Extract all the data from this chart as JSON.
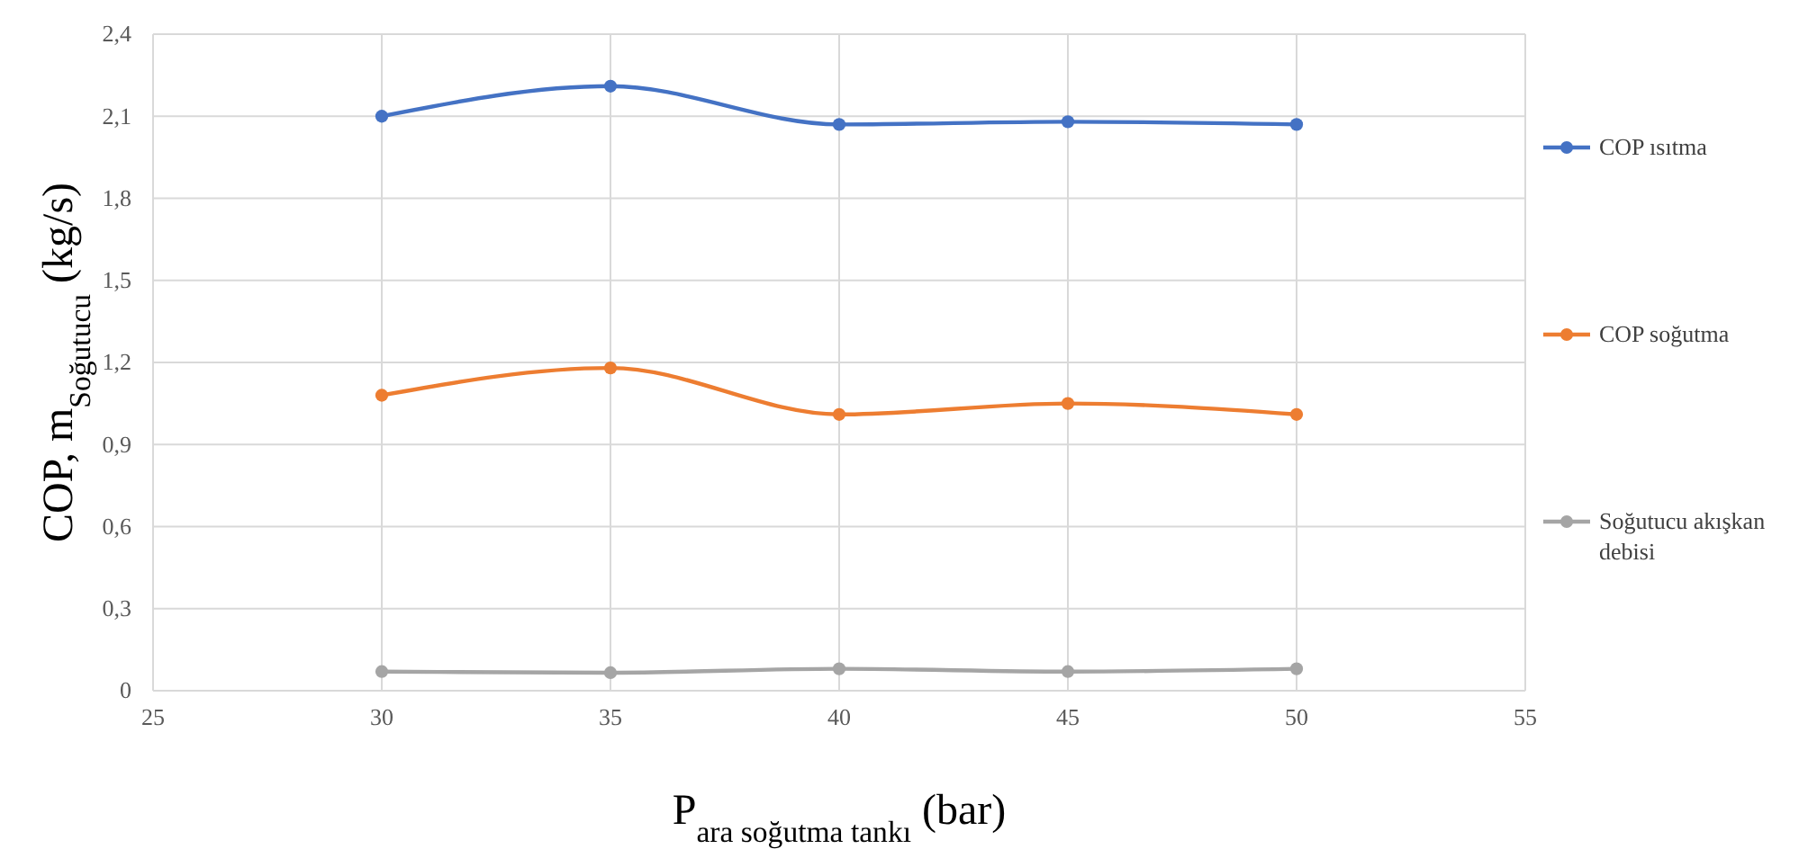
{
  "chart_data": {
    "type": "line",
    "xlabel": "P$_{ara soğutma tankı}$ (bar)",
    "ylabel": "COP, m$_{Soğutucu}$ (kg/s)",
    "x": [
      30,
      35,
      40,
      45,
      50
    ],
    "series": [
      {
        "name": "COP ısıtma",
        "color": "#4472c4",
        "values": [
          2.1,
          2.21,
          2.07,
          2.08,
          2.07
        ]
      },
      {
        "name": "COP soğutma",
        "color": "#ed7d31",
        "values": [
          1.08,
          1.18,
          1.01,
          1.05,
          1.01
        ]
      },
      {
        "name": "Soğutucu akışkan debisi",
        "color": "#a5a5a5",
        "values": [
          0.07,
          0.066,
          0.08,
          0.07,
          0.08
        ]
      }
    ],
    "xlim": [
      25,
      55
    ],
    "xticks": [
      25,
      30,
      35,
      40,
      45,
      50,
      55
    ],
    "ylim": [
      0,
      2.4
    ],
    "yticks": [
      0,
      {
        "value": 0.3,
        "label": "0,3"
      },
      {
        "value": 0.6,
        "label": "0,6"
      },
      {
        "value": 0.9,
        "label": "0,9"
      },
      {
        "value": 1.2,
        "label": "1,2"
      },
      {
        "value": 1.5,
        "label": "1,5"
      },
      {
        "value": 1.8,
        "label": "1,8"
      },
      {
        "value": 2.1,
        "label": "2,1"
      },
      {
        "value": 2.4,
        "label": "2,4"
      }
    ],
    "grid": true,
    "legend": "right",
    "marker": "circle",
    "line_style": "solid"
  }
}
